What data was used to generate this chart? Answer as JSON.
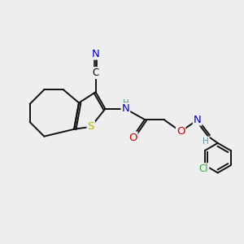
{
  "background_color": "#eeeeee",
  "figsize": [
    3.0,
    3.0
  ],
  "dpi": 100,
  "atom_colors": {
    "C": "#000000",
    "N": "#0000cc",
    "O": "#cc0000",
    "S": "#bbaa00",
    "H": "#559999",
    "Cl": "#33aa33"
  },
  "bond_color": "#111111",
  "bond_width": 1.4,
  "font_size_atom": 8.5,
  "font_size_h": 7.5
}
